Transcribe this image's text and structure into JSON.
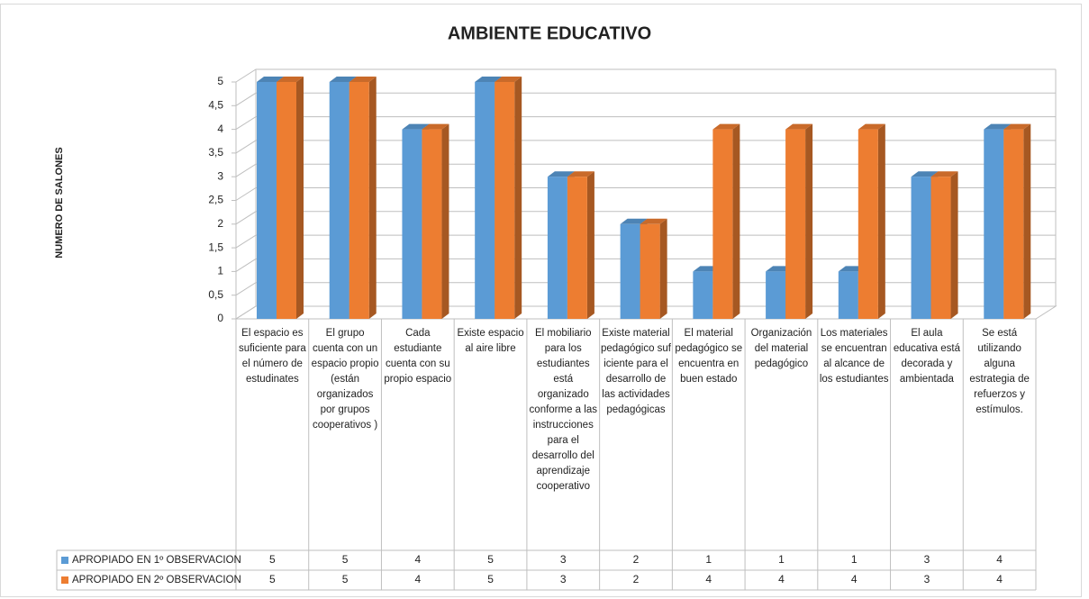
{
  "chart_data": {
    "type": "bar3d",
    "title": "AMBIENTE EDUCATIVO",
    "y_label": "NUMERO DE SALONES",
    "categories": [
      "El espacio es suficiente para el número de estudinates",
      "El grupo cuenta con un espacio propio (están organizados por grupos cooperativos )",
      "Cada estudiante cuenta con su propio espacio",
      "Existe espacio al aire libre",
      "El mobiliario para los estudiantes está organizado conforme a las instrucciones para el desarrollo del aprendizaje cooperativo",
      "Existe material pedagógico suf iciente para el desarrollo de las actividades pedagógicas",
      "El material pedagógico se encuentra en buen estado",
      "Organización del material pedagógico",
      "Los materiales se encuentran al alcance de los estudiantes",
      "El aula educativa está decorada y ambientada",
      "Se está utilizando alguna estrategia de refuerzos y estímulos."
    ],
    "series": [
      {
        "name": "APROPIADO EN 1º OBSERVACION",
        "color": "#5b9bd5",
        "values": [
          5,
          5,
          4,
          5,
          3,
          2,
          1,
          1,
          1,
          3,
          4
        ]
      },
      {
        "name": "APROPIADO EN 2º OBSERVACION",
        "color": "#ed7d31",
        "values": [
          5,
          5,
          4,
          5,
          3,
          2,
          4,
          4,
          4,
          3,
          4
        ]
      }
    ],
    "ylim": [
      0,
      5
    ],
    "yticks": [
      0,
      {
        "value": 0.5,
        "label": "0,5"
      },
      1,
      {
        "value": 1.5,
        "label": "1,5"
      },
      2,
      {
        "value": 2.5,
        "label": "2,5"
      },
      3,
      {
        "value": 3.5,
        "label": "3,5"
      },
      4,
      {
        "value": 4.5,
        "label": "4,5"
      },
      5
    ],
    "grid": true
  }
}
